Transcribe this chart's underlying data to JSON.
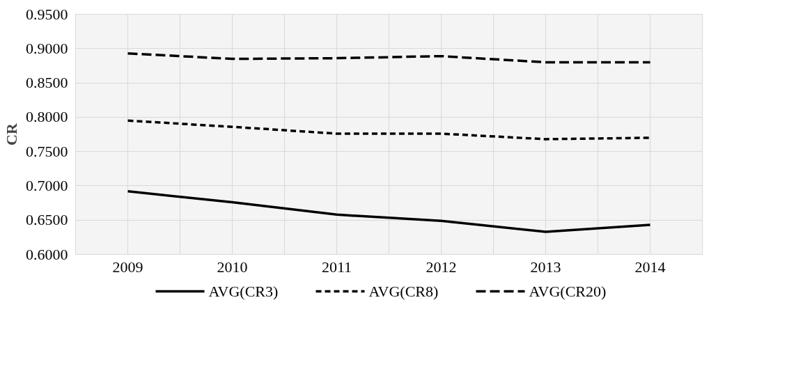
{
  "chart_data": {
    "type": "line",
    "ylabel": "CR",
    "categories": [
      "2009",
      "2010",
      "2011",
      "2012",
      "2013",
      "2014"
    ],
    "series": [
      {
        "name": "AVG(CR3)",
        "color": "#000000",
        "line_style": "solid",
        "values": [
          0.692,
          0.676,
          0.658,
          0.649,
          0.633,
          0.643
        ]
      },
      {
        "name": "AVG(CR8)",
        "color": "#000000",
        "line_style": "dotted",
        "values": [
          0.795,
          0.786,
          0.776,
          0.776,
          0.768,
          0.77
        ]
      },
      {
        "name": "AVG(CR20)",
        "color": "#000000",
        "line_style": "dashed",
        "values": [
          0.893,
          0.885,
          0.886,
          0.889,
          0.88,
          0.88
        ]
      }
    ],
    "ylim": [
      0.6,
      0.95
    ],
    "yticks": [
      {
        "value": 0.6,
        "label": "0.6000"
      },
      {
        "value": 0.65,
        "label": "0.6500"
      },
      {
        "value": 0.7,
        "label": "0.7000"
      },
      {
        "value": 0.75,
        "label": "0.7500"
      },
      {
        "value": 0.8,
        "label": "0.8000"
      },
      {
        "value": 0.85,
        "label": "0.8500"
      },
      {
        "value": 0.9,
        "label": "0.9000"
      },
      {
        "value": 0.95,
        "label": "0.9500"
      }
    ],
    "grid": true,
    "legend": "bottom",
    "marker": "none"
  }
}
